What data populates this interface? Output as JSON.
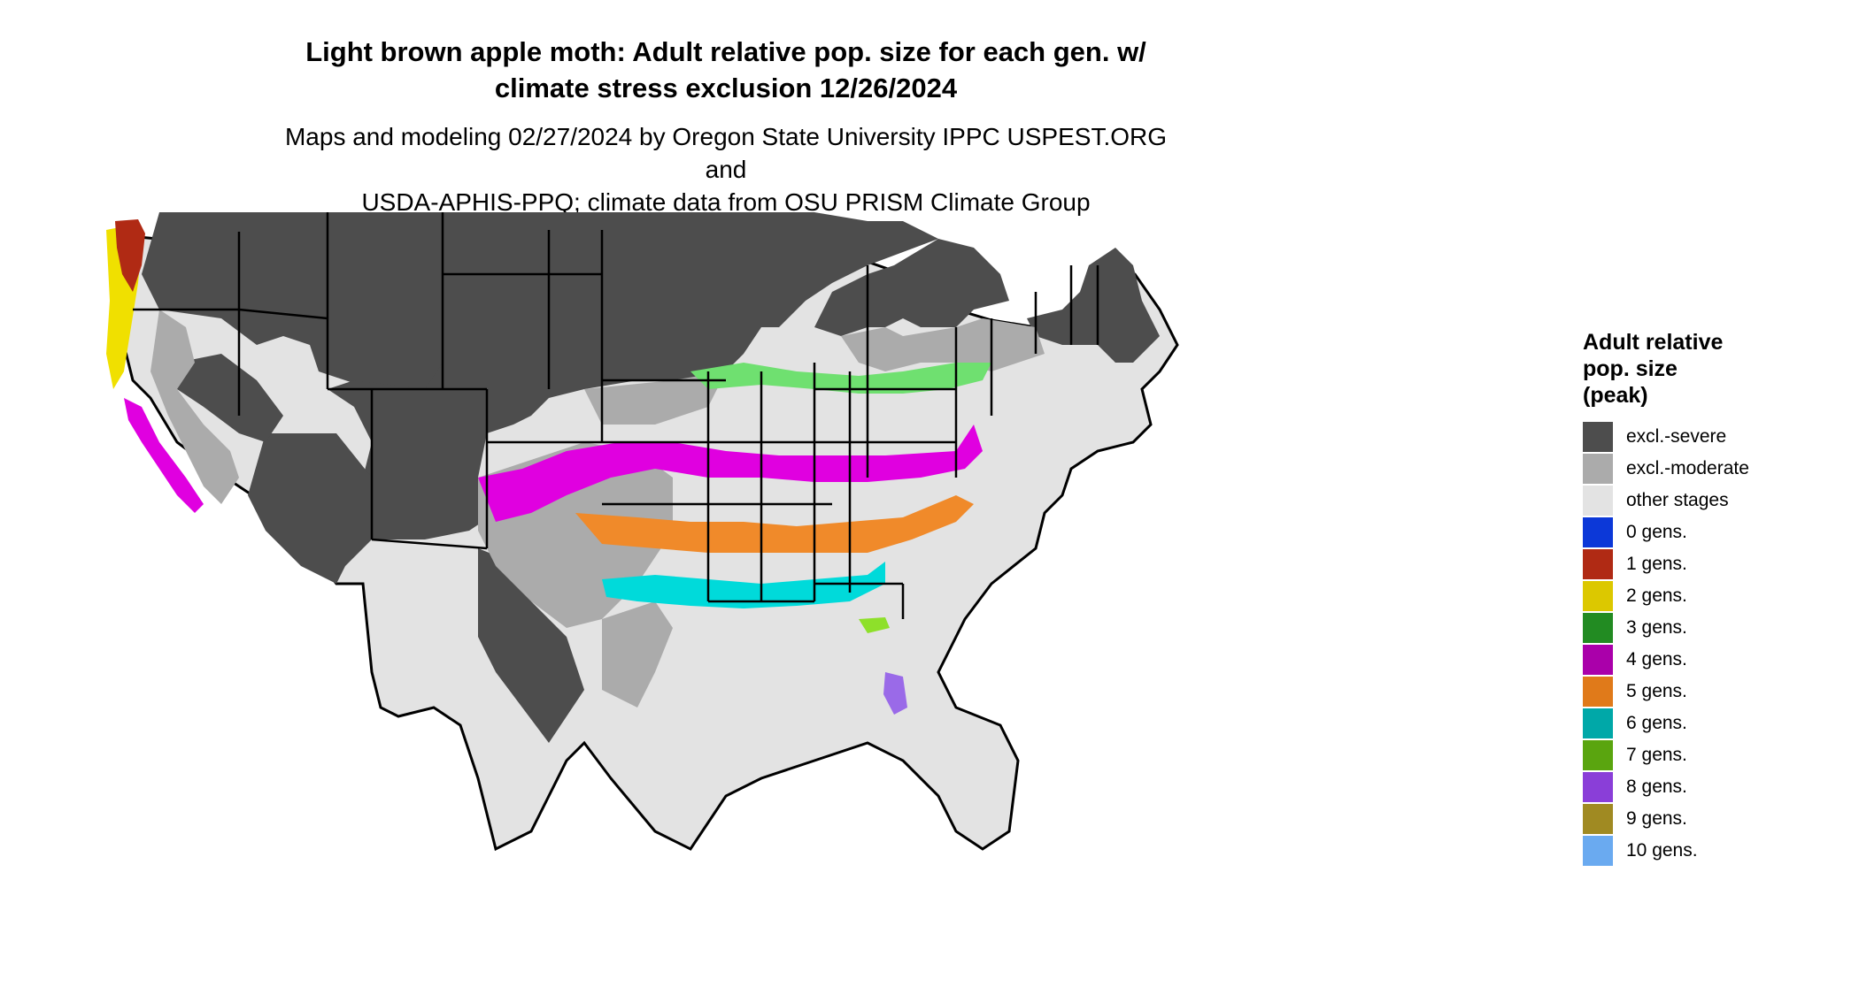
{
  "title_line1": "Light brown apple moth: Adult relative pop. size for each gen. w/",
  "title_line2": "climate stress exclusion 12/26/2024",
  "subtitle_line1": "Maps and modeling 02/27/2024 by Oregon State University IPPC USPEST.ORG and",
  "subtitle_line2": "USDA-APHIS-PPQ; climate data from OSU PRISM Climate Group",
  "legend": {
    "title_line1": "Adult relative",
    "title_line2": "pop. size",
    "title_line3": "(peak)",
    "items": [
      {
        "label": "excl.-severe",
        "color": "#4d4d4d"
      },
      {
        "label": "excl.-moderate",
        "color": "#ababab"
      },
      {
        "label": "other stages",
        "color": "#e3e3e3"
      },
      {
        "label": "0 gens.",
        "color": "#0c38d8"
      },
      {
        "label": "1 gens.",
        "color": "#b02a14"
      },
      {
        "label": "2 gens.",
        "color": "#dcc800"
      },
      {
        "label": "3 gens.",
        "color": "#228b22"
      },
      {
        "label": "4 gens.",
        "color": "#aa00aa"
      },
      {
        "label": "5 gens.",
        "color": "#e07a1a"
      },
      {
        "label": "6 gens.",
        "color": "#00a8a8"
      },
      {
        "label": "7 gens.",
        "color": "#5aa50f"
      },
      {
        "label": "8 gens.",
        "color": "#8a3ed8"
      },
      {
        "label": "9 gens.",
        "color": "#a08a22"
      },
      {
        "label": "10 gens.",
        "color": "#6aaaf0"
      }
    ]
  },
  "map_colors": {
    "severe": "#4d4d4d",
    "moderate": "#ababab",
    "other": "#e3e3e3",
    "band_4": "#e000e0",
    "band_5": "#f08a2a",
    "band_6": "#00dada",
    "band_3": "#6fe070",
    "band_1": "#b02a14",
    "band_2": "#f0e000",
    "band_7": "#8ee02a",
    "band_8": "#9a6ae8"
  }
}
